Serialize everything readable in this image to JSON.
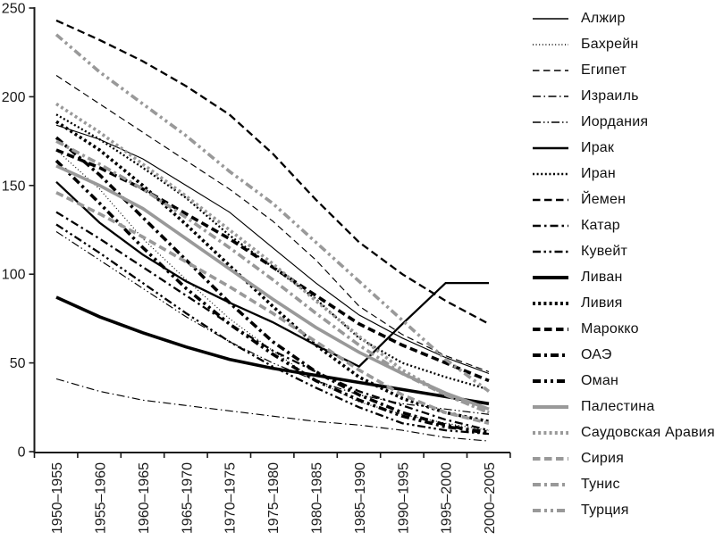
{
  "chart_data": {
    "type": "line",
    "title": "",
    "xlabel": "",
    "ylabel": "",
    "ylim": [
      0,
      250
    ],
    "yticks": [
      0,
      50,
      100,
      150,
      200,
      250
    ],
    "grid": false,
    "legend_position": "right",
    "categories": [
      "1950–1955",
      "1955–1960",
      "1960–1965",
      "1965–1970",
      "1970–1975",
      "1975–1980",
      "1980–1985",
      "1985–1990",
      "1990–1995",
      "1995–2000",
      "2000–2005"
    ],
    "series": [
      {
        "name": "Алжир",
        "weight": "thin",
        "color": "#000000",
        "dash": "solid",
        "values": [
          184,
          176,
          165,
          150,
          135,
          115,
          95,
          77,
          64,
          53,
          44
        ]
      },
      {
        "name": "Бахрейн",
        "weight": "thin",
        "color": "#000000",
        "dash": "dotted",
        "values": [
          170,
          148,
          120,
          97,
          75,
          57,
          40,
          28,
          21,
          16,
          12
        ]
      },
      {
        "name": "Египет",
        "weight": "thin",
        "color": "#000000",
        "dash": "dashed",
        "values": [
          212,
          196,
          180,
          164,
          148,
          130,
          108,
          82,
          66,
          54,
          45
        ]
      },
      {
        "name": "Израиль",
        "weight": "thin",
        "color": "#000000",
        "dash": "dashdot",
        "values": [
          41,
          34,
          29,
          26,
          23,
          20,
          17,
          15,
          12,
          8,
          6
        ]
      },
      {
        "name": "Иордания",
        "weight": "thin",
        "color": "#000000",
        "dash": "dashdotdot",
        "values": [
          124,
          108,
          92,
          76,
          62,
          50,
          40,
          32,
          27,
          24,
          21
        ]
      },
      {
        "name": "Ирак",
        "weight": "medium",
        "color": "#000000",
        "dash": "solid",
        "values": [
          152,
          129,
          111,
          96,
          84,
          73,
          60,
          48,
          72,
          95,
          95
        ]
      },
      {
        "name": "Иран",
        "weight": "medium",
        "color": "#000000",
        "dash": "dotted",
        "values": [
          190,
          176,
          160,
          143,
          122,
          104,
          86,
          64,
          50,
          42,
          35
        ]
      },
      {
        "name": "Йемен",
        "weight": "medium",
        "color": "#000000",
        "dash": "dashed",
        "values": [
          243,
          232,
          220,
          206,
          190,
          168,
          142,
          118,
          100,
          85,
          72
        ]
      },
      {
        "name": "Катар",
        "weight": "medium",
        "color": "#000000",
        "dash": "dashdot",
        "values": [
          135,
          120,
          104,
          88,
          72,
          57,
          45,
          34,
          26,
          18,
          12
        ]
      },
      {
        "name": "Кувейт",
        "weight": "medium",
        "color": "#000000",
        "dash": "dashdotdot",
        "values": [
          128,
          112,
          95,
          78,
          62,
          48,
          36,
          25,
          16,
          12,
          10
        ]
      },
      {
        "name": "Ливан",
        "weight": "thick",
        "color": "#000000",
        "dash": "solid",
        "values": [
          87,
          76,
          67,
          59,
          52,
          47,
          43,
          39,
          35,
          31,
          27
        ]
      },
      {
        "name": "Ливия",
        "weight": "thick",
        "color": "#000000",
        "dash": "dotted",
        "values": [
          186,
          170,
          150,
          128,
          105,
          82,
          60,
          42,
          30,
          22,
          17
        ]
      },
      {
        "name": "Марокко",
        "weight": "thick",
        "color": "#000000",
        "dash": "dashed",
        "values": [
          170,
          160,
          148,
          134,
          120,
          104,
          88,
          72,
          60,
          50,
          40
        ]
      },
      {
        "name": "ОАЭ",
        "weight": "thick",
        "color": "#000000",
        "dash": "dashdot",
        "values": [
          177,
          156,
          132,
          108,
          84,
          62,
          45,
          32,
          22,
          15,
          10
        ]
      },
      {
        "name": "Оман",
        "weight": "thick",
        "color": "#000000",
        "dash": "dashdotdot",
        "values": [
          164,
          140,
          115,
          92,
          72,
          55,
          40,
          29,
          20,
          14,
          11
        ]
      },
      {
        "name": "Палестина",
        "weight": "thick",
        "color": "#999999",
        "dash": "solid",
        "values": [
          161,
          150,
          137,
          120,
          103,
          86,
          70,
          56,
          44,
          33,
          24
        ]
      },
      {
        "name": "Саудовская Аравия",
        "weight": "thick",
        "color": "#999999",
        "dash": "dotted",
        "values": [
          196,
          180,
          162,
          144,
          125,
          106,
          85,
          65,
          46,
          32,
          22
        ]
      },
      {
        "name": "Сирия",
        "weight": "thick",
        "color": "#999999",
        "dash": "dashed",
        "values": [
          146,
          134,
          121,
          107,
          93,
          78,
          62,
          46,
          32,
          22,
          16
        ]
      },
      {
        "name": "Тунис",
        "weight": "thick",
        "color": "#999999",
        "dash": "dashdot",
        "values": [
          175,
          162,
          148,
          132,
          115,
          97,
          78,
          60,
          44,
          32,
          22
        ]
      },
      {
        "name": "Турция",
        "weight": "thick",
        "color": "#999999",
        "dash": "dashdotdot",
        "values": [
          235,
          214,
          196,
          178,
          158,
          140,
          118,
          96,
          74,
          52,
          34
        ]
      }
    ],
    "axis_color": "#1a1a1a",
    "tick_label_color": "#1a1a1a"
  }
}
